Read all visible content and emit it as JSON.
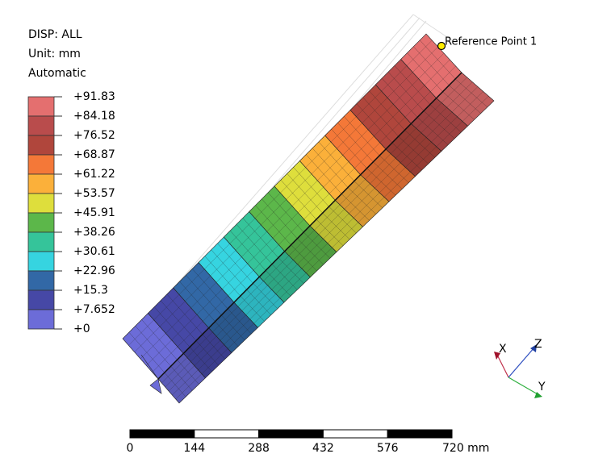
{
  "legend": {
    "title_lines": [
      "DISP: ALL",
      "Unit: mm",
      "Automatic"
    ],
    "labels": [
      "+91.83",
      "+84.18",
      "+76.52",
      "+68.87",
      "+61.22",
      "+53.57",
      "+45.91",
      "+38.26",
      "+30.61",
      "+22.96",
      "+15.3",
      "+7.652",
      "+0"
    ],
    "colors": [
      "#e46f6f",
      "#b94c4c",
      "#b0463c",
      "#f47838",
      "#fbb03a",
      "#dede3c",
      "#5cb74a",
      "#35c49a",
      "#36d4e0",
      "#3268a6",
      "#4648a6",
      "#6c6cd8"
    ]
  },
  "reference_point": {
    "label": "Reference Point 1"
  },
  "triad": {
    "x": "X",
    "y": "Y",
    "z": "Z"
  },
  "scale_bar": {
    "labels": [
      "0",
      "144",
      "288",
      "432",
      "576",
      "720 mm"
    ]
  }
}
